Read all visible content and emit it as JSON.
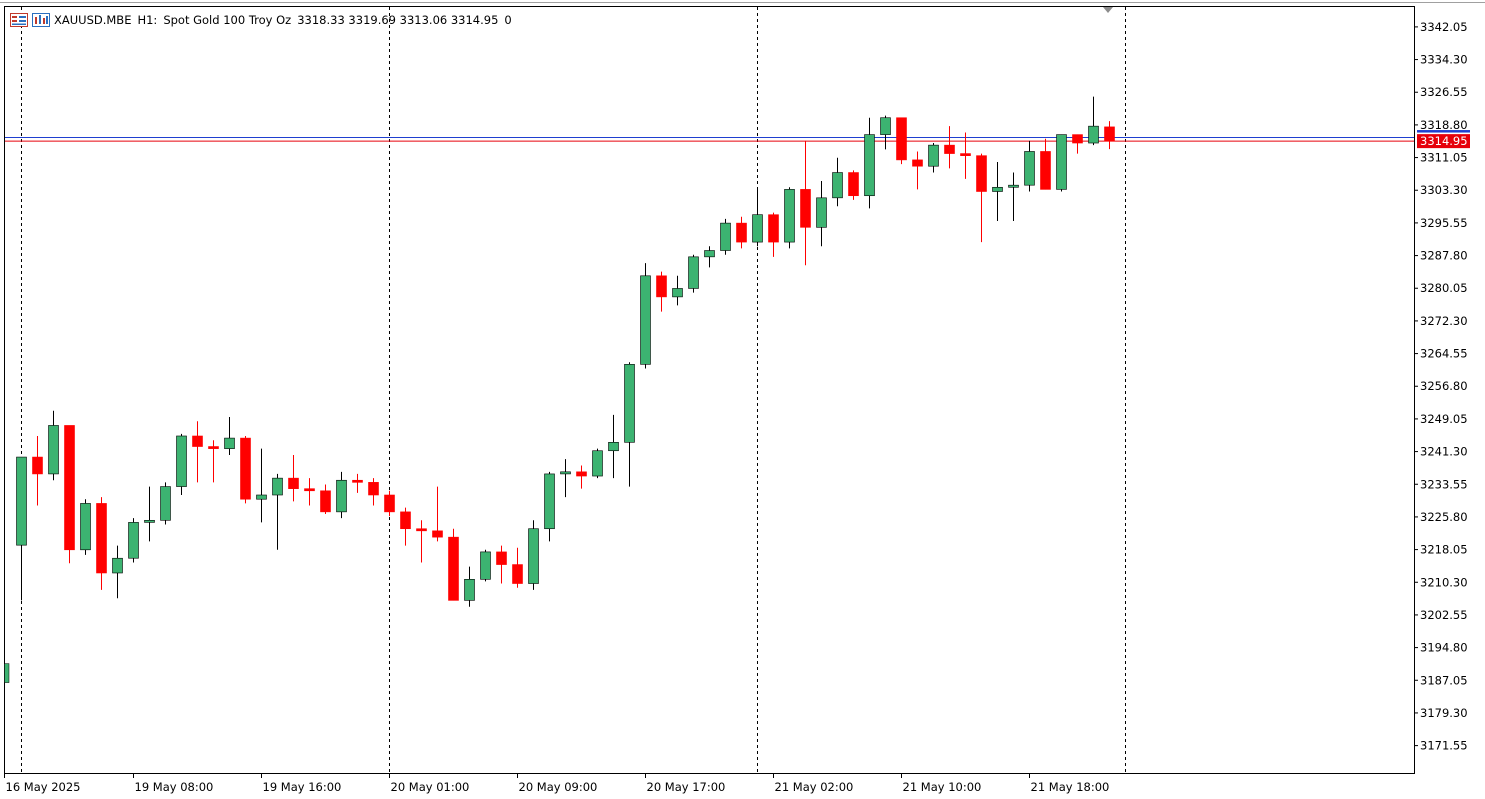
{
  "header": {
    "symbol": "XAUUSD.MBE",
    "timeframe": "H1:",
    "description": "Spot Gold 100 Troy Oz",
    "ohlc": "3318.33 3319.69 3313.06 3314.95",
    "volume": "0",
    "icons": [
      "chart-menu-icon",
      "chart-properties-icon"
    ]
  },
  "chart_data": {
    "type": "candlestick",
    "symbol": "XAUUSD.MBE",
    "interval": "H1",
    "title": "",
    "xlabel": "",
    "ylabel": "",
    "ylim": [
      3165.05,
      3346.77
    ],
    "y_ticks": [
      "3342.05",
      "3334.30",
      "3326.55",
      "3318.80",
      "3311.05",
      "3303.30",
      "3295.55",
      "3287.80",
      "3280.05",
      "3272.30",
      "3264.55",
      "3256.80",
      "3249.05",
      "3241.30",
      "3233.55",
      "3225.80",
      "3218.05",
      "3210.30",
      "3202.55",
      "3194.80",
      "3187.05",
      "3179.30",
      "3171.55"
    ],
    "x_ticks": [
      {
        "label": "16 May 2025",
        "index": 0
      },
      {
        "label": "19 May 08:00",
        "index": 8
      },
      {
        "label": "19 May 16:00",
        "index": 16
      },
      {
        "label": "20 May 01:00",
        "index": 24
      },
      {
        "label": "20 May 09:00",
        "index": 32
      },
      {
        "label": "20 May 17:00",
        "index": 40
      },
      {
        "label": "21 May 02:00",
        "index": 48
      },
      {
        "label": "21 May 10:00",
        "index": 56
      },
      {
        "label": "21 May 18:00",
        "index": 64
      }
    ],
    "session_separators": [
      0,
      23,
      46,
      69
    ],
    "current_price": "3314.95",
    "price_line_color": "#e6000a",
    "ask_line_color": "#1f3fd0",
    "ask_price": 3315.8,
    "up_color": "#3cb371",
    "down_color": "#ff0000",
    "candles": [
      {
        "o": 3219.1,
        "h": 3240.0,
        "l": 3206.0,
        "c": 3240.0
      },
      {
        "o": 3240.0,
        "h": 3245.0,
        "l": 3228.5,
        "c": 3236.0
      },
      {
        "o": 3236.0,
        "h": 3251.0,
        "l": 3234.5,
        "c": 3247.5
      },
      {
        "o": 3247.5,
        "h": 3247.5,
        "l": 3214.8,
        "c": 3218.0
      },
      {
        "o": 3218.0,
        "h": 3230.0,
        "l": 3216.8,
        "c": 3229.0
      },
      {
        "o": 3229.0,
        "h": 3230.5,
        "l": 3208.5,
        "c": 3212.5
      },
      {
        "o": 3212.5,
        "h": 3219.0,
        "l": 3206.5,
        "c": 3216.0
      },
      {
        "o": 3216.0,
        "h": 3225.5,
        "l": 3215.0,
        "c": 3224.5
      },
      {
        "o": 3224.5,
        "h": 3233.0,
        "l": 3220.0,
        "c": 3225.0
      },
      {
        "o": 3225.0,
        "h": 3234.0,
        "l": 3224.0,
        "c": 3233.0
      },
      {
        "o": 3233.0,
        "h": 3245.5,
        "l": 3231.0,
        "c": 3245.0
      },
      {
        "o": 3245.0,
        "h": 3248.5,
        "l": 3234.0,
        "c": 3242.5
      },
      {
        "o": 3242.5,
        "h": 3244.0,
        "l": 3234.0,
        "c": 3242.0
      },
      {
        "o": 3242.0,
        "h": 3249.5,
        "l": 3240.5,
        "c": 3244.5
      },
      {
        "o": 3244.5,
        "h": 3245.0,
        "l": 3229.0,
        "c": 3230.0
      },
      {
        "o": 3230.0,
        "h": 3242.0,
        "l": 3224.5,
        "c": 3231.0
      },
      {
        "o": 3231.0,
        "h": 3236.0,
        "l": 3218.0,
        "c": 3235.0
      },
      {
        "o": 3235.0,
        "h": 3240.5,
        "l": 3229.5,
        "c": 3232.5
      },
      {
        "o": 3232.5,
        "h": 3235.0,
        "l": 3228.5,
        "c": 3232.0
      },
      {
        "o": 3232.0,
        "h": 3233.5,
        "l": 3226.5,
        "c": 3227.0
      },
      {
        "o": 3227.0,
        "h": 3236.5,
        "l": 3225.5,
        "c": 3234.5
      },
      {
        "o": 3234.5,
        "h": 3236.0,
        "l": 3231.5,
        "c": 3234.0
      },
      {
        "o": 3234.0,
        "h": 3235.0,
        "l": 3228.5,
        "c": 3231.0
      },
      {
        "o": 3231.0,
        "h": 3232.0,
        "l": 3226.0,
        "c": 3227.0
      },
      {
        "o": 3227.0,
        "h": 3228.0,
        "l": 3219.0,
        "c": 3223.0
      },
      {
        "o": 3223.0,
        "h": 3225.0,
        "l": 3215.0,
        "c": 3222.5
      },
      {
        "o": 3222.5,
        "h": 3233.0,
        "l": 3220.0,
        "c": 3221.0
      },
      {
        "o": 3221.0,
        "h": 3223.0,
        "l": 3206.0,
        "c": 3206.0
      },
      {
        "o": 3206.0,
        "h": 3214.0,
        "l": 3204.5,
        "c": 3211.0
      },
      {
        "o": 3211.0,
        "h": 3218.0,
        "l": 3210.5,
        "c": 3217.5
      },
      {
        "o": 3217.5,
        "h": 3219.0,
        "l": 3210.0,
        "c": 3214.5
      },
      {
        "o": 3214.5,
        "h": 3218.5,
        "l": 3209.0,
        "c": 3210.0
      },
      {
        "o": 3210.0,
        "h": 3225.0,
        "l": 3208.5,
        "c": 3223.0
      },
      {
        "o": 3223.0,
        "h": 3236.5,
        "l": 3220.0,
        "c": 3236.0
      },
      {
        "o": 3236.0,
        "h": 3239.5,
        "l": 3230.5,
        "c": 3236.5
      },
      {
        "o": 3236.5,
        "h": 3238.0,
        "l": 3232.5,
        "c": 3235.5
      },
      {
        "o": 3235.5,
        "h": 3242.0,
        "l": 3235.0,
        "c": 3241.5
      },
      {
        "o": 3241.5,
        "h": 3250.0,
        "l": 3235.0,
        "c": 3243.5
      },
      {
        "o": 3243.5,
        "h": 3262.5,
        "l": 3233.0,
        "c": 3262.0
      },
      {
        "o": 3262.0,
        "h": 3286.0,
        "l": 3261.0,
        "c": 3283.0
      },
      {
        "o": 3283.0,
        "h": 3284.0,
        "l": 3274.5,
        "c": 3278.0
      },
      {
        "o": 3278.0,
        "h": 3283.0,
        "l": 3276.0,
        "c": 3280.0
      },
      {
        "o": 3280.0,
        "h": 3288.0,
        "l": 3279.0,
        "c": 3287.5
      },
      {
        "o": 3287.5,
        "h": 3290.0,
        "l": 3285.0,
        "c": 3289.0
      },
      {
        "o": 3289.0,
        "h": 3296.5,
        "l": 3288.0,
        "c": 3295.5
      },
      {
        "o": 3295.5,
        "h": 3297.0,
        "l": 3289.5,
        "c": 3291.0
      },
      {
        "o": 3291.0,
        "h": 3304.0,
        "l": 3290.0,
        "c": 3297.5
      },
      {
        "o": 3297.5,
        "h": 3298.0,
        "l": 3287.5,
        "c": 3291.0
      },
      {
        "o": 3291.0,
        "h": 3304.0,
        "l": 3289.5,
        "c": 3303.5
      },
      {
        "o": 3303.5,
        "h": 3315.0,
        "l": 3285.5,
        "c": 3294.5
      },
      {
        "o": 3294.5,
        "h": 3305.5,
        "l": 3290.0,
        "c": 3301.5
      },
      {
        "o": 3301.5,
        "h": 3311.0,
        "l": 3299.5,
        "c": 3307.5
      },
      {
        "o": 3307.5,
        "h": 3308.0,
        "l": 3301.0,
        "c": 3302.0
      },
      {
        "o": 3302.0,
        "h": 3320.5,
        "l": 3299.0,
        "c": 3316.5
      },
      {
        "o": 3316.5,
        "h": 3321.0,
        "l": 3313.0,
        "c": 3320.5
      },
      {
        "o": 3320.5,
        "h": 3320.5,
        "l": 3309.5,
        "c": 3310.5
      },
      {
        "o": 3310.5,
        "h": 3312.5,
        "l": 3303.5,
        "c": 3309.0
      },
      {
        "o": 3309.0,
        "h": 3314.5,
        "l": 3307.5,
        "c": 3314.0
      },
      {
        "o": 3314.0,
        "h": 3318.5,
        "l": 3308.5,
        "c": 3312.0
      },
      {
        "o": 3312.0,
        "h": 3317.0,
        "l": 3306.0,
        "c": 3311.5
      },
      {
        "o": 3311.5,
        "h": 3312.0,
        "l": 3291.0,
        "c": 3303.0
      },
      {
        "o": 3303.0,
        "h": 3310.0,
        "l": 3296.0,
        "c": 3304.0
      },
      {
        "o": 3304.0,
        "h": 3307.5,
        "l": 3296.0,
        "c": 3304.5
      },
      {
        "o": 3304.5,
        "h": 3315.0,
        "l": 3303.0,
        "c": 3312.5
      },
      {
        "o": 3312.5,
        "h": 3315.5,
        "l": 3303.5,
        "c": 3303.5
      },
      {
        "o": 3303.5,
        "h": 3316.5,
        "l": 3303.0,
        "c": 3316.5
      },
      {
        "o": 3316.5,
        "h": 3316.5,
        "l": 3312.0,
        "c": 3314.5
      },
      {
        "o": 3314.5,
        "h": 3325.5,
        "l": 3314.0,
        "c": 3318.5
      },
      {
        "o": 3318.33,
        "h": 3319.69,
        "l": 3313.06,
        "c": 3314.95
      }
    ]
  }
}
